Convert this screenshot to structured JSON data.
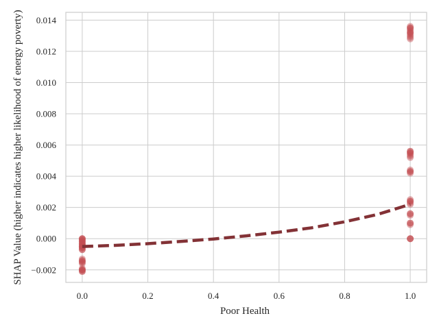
{
  "chart_data": {
    "type": "scatter",
    "title": "",
    "xlabel": "Poor Health",
    "ylabel": "SHAP Value (higher indicates higher likelihood of energy poverty)",
    "xlim": [
      -0.05,
      1.05
    ],
    "ylim": [
      -0.0028,
      0.0145
    ],
    "xticks": [
      0.0,
      0.2,
      0.4,
      0.6,
      0.8,
      1.0
    ],
    "xtick_labels": [
      "0.0",
      "0.2",
      "0.4",
      "0.6",
      "0.8",
      "1.0"
    ],
    "yticks": [
      -0.002,
      0.0,
      0.002,
      0.004,
      0.006,
      0.008,
      0.01,
      0.012,
      0.014
    ],
    "ytick_labels": [
      "−0.002",
      "0.000",
      "0.002",
      "0.004",
      "0.006",
      "0.008",
      "0.010",
      "0.012",
      "0.014"
    ],
    "grid": true,
    "legend": "none",
    "point_color": "#c44e52",
    "trend_color": "#833236",
    "series": [
      {
        "values_x": [
          0,
          0,
          0,
          0,
          0,
          0,
          0,
          0,
          0,
          0,
          0,
          0,
          0,
          0,
          0,
          0,
          0,
          0,
          0,
          0,
          0,
          0,
          0,
          0,
          0,
          0,
          0,
          0,
          0,
          0
        ],
        "values_y": [
          0.0,
          -0.0001,
          -0.0002,
          -0.0003,
          -0.0004,
          -0.0005,
          -0.0006,
          -0.0007,
          -0.0005,
          -0.0004,
          -0.0014,
          -0.0015,
          -0.0016,
          -0.0013,
          -0.002,
          -0.0021,
          -0.0019,
          -0.002,
          -0.0006,
          0.0,
          -0.0002,
          -0.0001,
          -0.0015,
          -0.002,
          -0.0003,
          -0.0007,
          -0.0005,
          -0.0014,
          -0.0021,
          0.0
        ]
      },
      {
        "values_x": [
          1,
          1,
          1,
          1,
          1,
          1,
          1,
          1,
          1,
          1,
          1,
          1,
          1,
          1,
          1,
          1,
          1,
          1,
          1,
          1,
          1,
          1,
          1,
          1,
          1,
          1,
          1,
          1,
          1,
          1,
          1,
          1,
          1,
          1,
          1,
          1
        ],
        "values_y": [
          0.0136,
          0.0135,
          0.0134,
          0.0133,
          0.0132,
          0.0131,
          0.013,
          0.0129,
          0.0128,
          0.0056,
          0.0055,
          0.0054,
          0.0053,
          0.0052,
          0.0044,
          0.0043,
          0.0042,
          0.0025,
          0.0024,
          0.0023,
          0.0022,
          0.0016,
          0.0015,
          0.001,
          0.0009,
          0.0,
          0.0,
          0.0135,
          0.0132,
          0.0055,
          0.0043,
          0.0024,
          0.0016,
          0.001,
          0.0,
          0.0056
        ]
      }
    ],
    "trend": {
      "style": "dashed",
      "x": [
        0.0,
        0.1,
        0.2,
        0.3,
        0.4,
        0.5,
        0.6,
        0.7,
        0.8,
        0.9,
        1.0
      ],
      "y": [
        -0.0005,
        -0.00043,
        -0.00032,
        -0.00018,
        -2e-05,
        0.00018,
        0.00042,
        0.0007,
        0.00108,
        0.00155,
        0.0022
      ]
    }
  }
}
